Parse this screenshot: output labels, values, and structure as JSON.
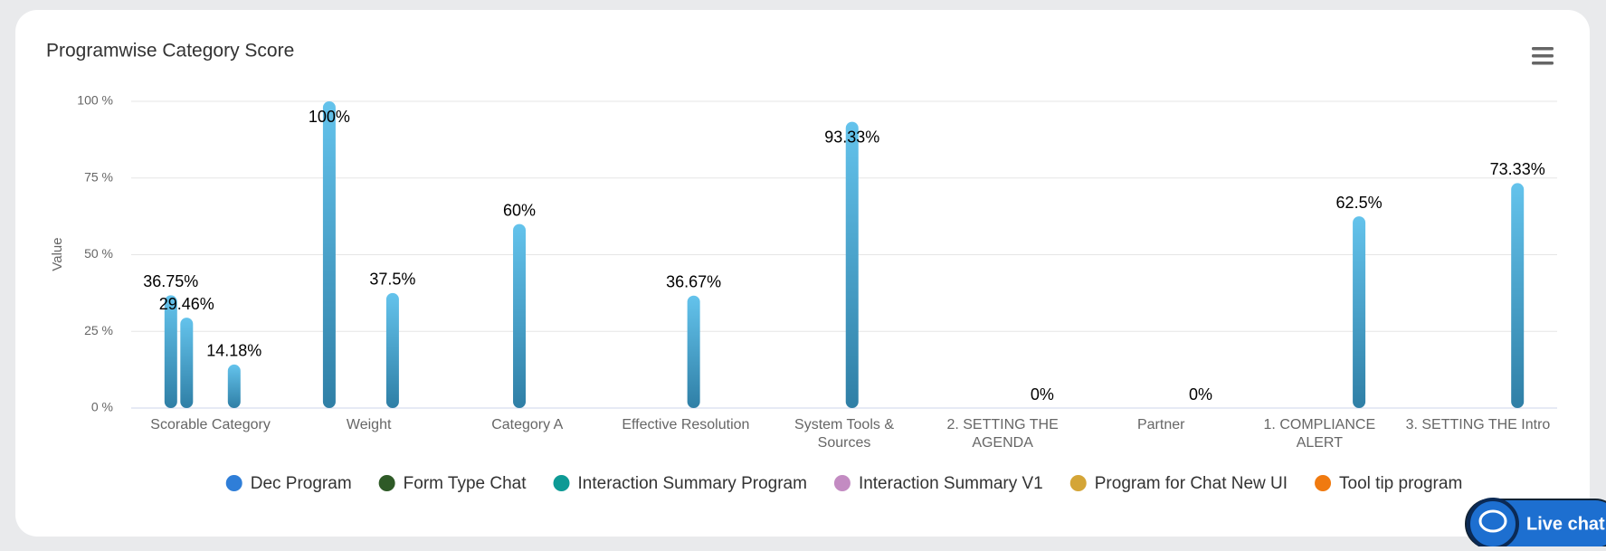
{
  "chart_data": {
    "type": "bar",
    "title": "Programwise Category Score",
    "y_axis_label": "Value",
    "categories": [
      "Scorable Category",
      "Weight",
      "Category A",
      "Effective Resolution",
      "System Tools & Sources",
      "2. SETTING THE AGENDA",
      "Partner",
      "1. COMPLIANCE ALERT",
      "3. SETTING THE Intro"
    ],
    "series": [
      {
        "name": "Dec Program",
        "color": "#2f7ed8",
        "values": [
          36.75,
          100,
          null,
          null,
          null,
          null,
          null,
          null,
          null
        ],
        "value_labels": [
          "36.75%",
          "100%",
          null,
          null,
          null,
          null,
          null,
          null,
          null
        ]
      },
      {
        "name": "Form Type Chat",
        "color": "#2e5a27",
        "values": [
          29.46,
          null,
          null,
          null,
          null,
          null,
          null,
          null,
          null
        ],
        "value_labels": [
          "29.46%",
          null,
          null,
          null,
          null,
          null,
          null,
          null,
          null
        ]
      },
      {
        "name": "Interaction Summary Program",
        "color": "#0d9a95",
        "values": [
          null,
          null,
          60,
          null,
          null,
          null,
          null,
          null,
          null
        ],
        "value_labels": [
          null,
          null,
          "60%",
          null,
          null,
          null,
          null,
          null,
          null
        ]
      },
      {
        "name": "Interaction Summary V1",
        "color": "#c38bc2",
        "values": [
          null,
          null,
          null,
          36.67,
          93.33,
          null,
          null,
          null,
          null
        ],
        "value_labels": [
          null,
          null,
          null,
          "36.67%",
          "93.33%",
          null,
          null,
          null,
          null
        ]
      },
      {
        "name": "Program for Chat New UI",
        "color": "#d4a537",
        "values": [
          14.18,
          37.5,
          null,
          null,
          null,
          null,
          null,
          null,
          null
        ],
        "value_labels": [
          "14.18%",
          "37.5%",
          null,
          null,
          null,
          null,
          null,
          null,
          null
        ]
      },
      {
        "name": "Tool tip program",
        "color": "#f07a10",
        "values": [
          null,
          null,
          null,
          null,
          null,
          0,
          0,
          62.5,
          73.33
        ],
        "value_labels": [
          null,
          null,
          null,
          null,
          null,
          "0%",
          "0%",
          "62.5%",
          "73.33%"
        ]
      }
    ],
    "bar_gradient": [
      "#64c3ec",
      "#2f7fa6"
    ],
    "ylim": [
      0,
      100
    ],
    "yticks": [
      {
        "value": 0,
        "label": "0 %"
      },
      {
        "value": 25,
        "label": "25 %"
      },
      {
        "value": 50,
        "label": "50 %"
      },
      {
        "value": 75,
        "label": "75 %"
      },
      {
        "value": 100,
        "label": "100 %"
      }
    ],
    "grid": true,
    "legend": "bottom"
  },
  "widget": {
    "live_chat": "Live chat"
  }
}
